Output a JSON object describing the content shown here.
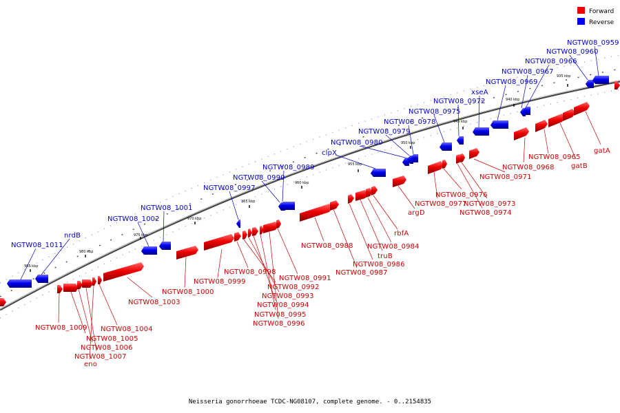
{
  "caption": "Neisseria gonorrhoeae TCDC-NG08107, complete genome. - 0..2154835",
  "legend": [
    {
      "label": "Forward",
      "color": "#ee0000"
    },
    {
      "label": "Reverse",
      "color": "#0000ee"
    }
  ],
  "colors": {
    "forward": "#ee0000",
    "reverse": "#0000ee",
    "backbone": "#888888"
  },
  "ticks": [
    "985 kbp",
    "980 kbp",
    "975 kbp",
    "970 kbp",
    "965 kbp",
    "960 kbp",
    "955 kbp",
    "950 kbp",
    "945 kbp",
    "940 kbp",
    "935 kbp"
  ],
  "reverse_genes": [
    "NGTW08_1011",
    "nrdB",
    "NGTW08_1002",
    "NGTW08_1001",
    "NGTW08_0997",
    "NGTW08_0990",
    "NGTW08_0989",
    "clpX",
    "NGTW08_0980",
    "NGTW08_0979",
    "NGTW08_0978",
    "NGTW08_0975",
    "NGTW08_0972",
    "xseA",
    "NGTW08_0969",
    "NGTW08_0967",
    "NGTW08_0966",
    "NGTW08_0960",
    "NGTW08_0959"
  ],
  "forward_genes": [
    "NGTW08_1009",
    "NGTW08_1005",
    "NGTW08_1006",
    "NGTW08_1007",
    "eno",
    "NGTW08_1004",
    "NGTW08_1003",
    "NGTW08_1000",
    "NGTW08_0999",
    "NGTW08_0998",
    "NGTW08_0992",
    "NGTW08_0993",
    "NGTW08_0994",
    "NGTW08_0995",
    "NGTW08_0996",
    "NGTW08_0991",
    "NGTW08_0988",
    "NGTW08_0987",
    "NGTW08_0986",
    "truB",
    "NGTW08_0984",
    "rbfA",
    "argD",
    "NGTW08_0977",
    "NGTW08_0976",
    "NGTW08_0974",
    "NGTW08_0973",
    "NGTW08_0971",
    "NGTW08_0968",
    "NGTW08_0965",
    "gatB",
    "gatA"
  ]
}
